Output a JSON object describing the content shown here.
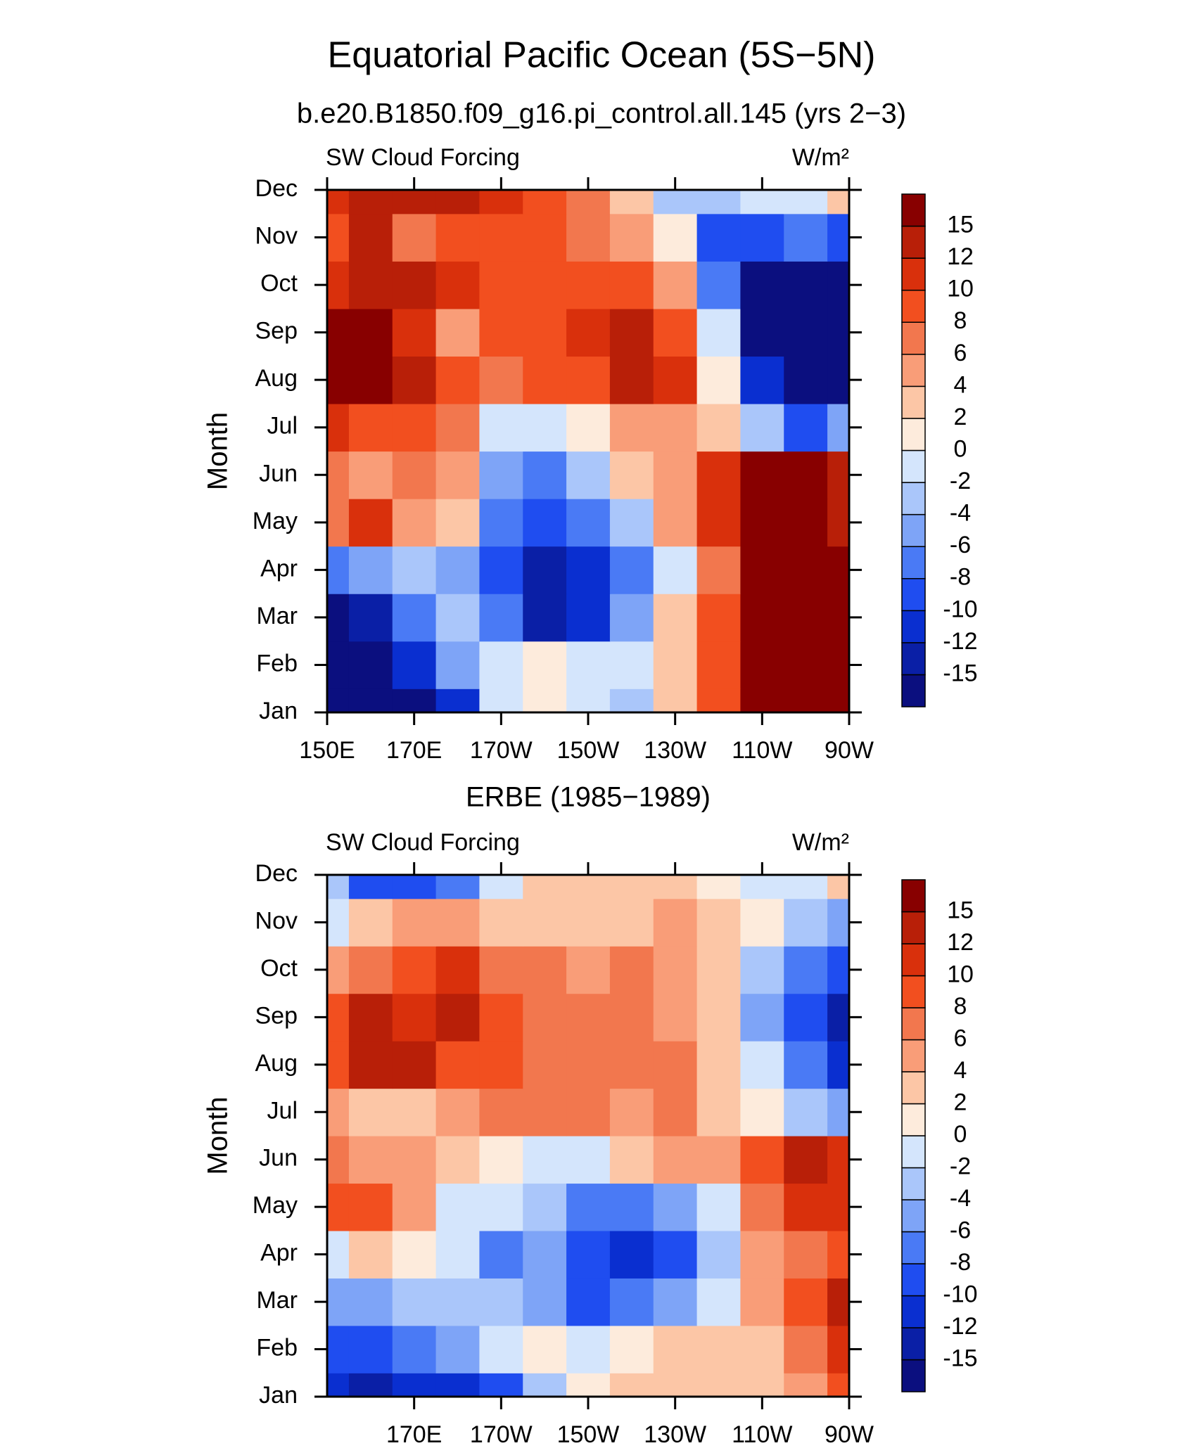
{
  "header": {
    "title": "Equatorial Pacific Ocean (5S−5N)",
    "subtitle": "b.e20.B1850.f09_g16.pi_control.all.145 (yrs 2−3)"
  },
  "colorbar": {
    "levels": [
      -15,
      -12,
      -10,
      -8,
      -6,
      -4,
      -2,
      0,
      2,
      4,
      6,
      8,
      10,
      12,
      15
    ],
    "colors": [
      "#0b0f7f",
      "#0a1fa6",
      "#0a2fd0",
      "#1f4df0",
      "#4a7af5",
      "#7ea4f7",
      "#aac6fa",
      "#d4e5fc",
      "#fdebdc",
      "#fcc6a6",
      "#f99d78",
      "#f2774e",
      "#f24f1f",
      "#d9300c",
      "#b81f08",
      "#880000"
    ]
  },
  "chart_data": [
    {
      "type": "contour",
      "left_label": "SW Cloud Forcing",
      "right_label": "W/m²",
      "ylabel": "Month",
      "categories": [
        "Jan",
        "Feb",
        "Mar",
        "Apr",
        "May",
        "Jun",
        "Jul",
        "Aug",
        "Sep",
        "Oct",
        "Nov",
        "Dec"
      ],
      "x": [
        150,
        160,
        170,
        180,
        190,
        200,
        210,
        220,
        230,
        240,
        250,
        260,
        270
      ],
      "xlim": [
        150,
        270
      ],
      "xticks": [
        {
          "value": 150,
          "label": "150E"
        },
        {
          "value": 170,
          "label": "170E"
        },
        {
          "value": 190,
          "label": "170W"
        },
        {
          "value": 210,
          "label": "150W"
        },
        {
          "value": 230,
          "label": "130W"
        },
        {
          "value": 250,
          "label": "110W"
        },
        {
          "value": 270,
          "label": "90W"
        }
      ],
      "z": [
        [
          -16,
          -16,
          -16,
          -12,
          -2,
          0,
          -2,
          -4,
          2,
          8,
          16,
          16,
          16
        ],
        [
          -16,
          -16,
          -12,
          -6,
          -2,
          0,
          -2,
          -2,
          2,
          8,
          16,
          16,
          16
        ],
        [
          -16,
          -14,
          -8,
          -4,
          -8,
          -14,
          -12,
          -6,
          2,
          8,
          16,
          18,
          16
        ],
        [
          -8,
          -6,
          -4,
          -6,
          -10,
          -14,
          -12,
          -8,
          -2,
          6,
          16,
          18,
          16
        ],
        [
          6,
          10,
          4,
          2,
          -8,
          -10,
          -8,
          -4,
          4,
          10,
          16,
          16,
          14
        ],
        [
          6,
          4,
          6,
          4,
          -6,
          -8,
          -4,
          2,
          4,
          10,
          16,
          16,
          12
        ],
        [
          10,
          8,
          8,
          6,
          -2,
          -2,
          0,
          4,
          4,
          2,
          -4,
          -10,
          -6
        ],
        [
          18,
          18,
          12,
          8,
          6,
          8,
          8,
          12,
          10,
          0,
          -12,
          -16,
          -16
        ],
        [
          18,
          18,
          10,
          4,
          8,
          8,
          10,
          14,
          8,
          -2,
          -16,
          -16,
          -16
        ],
        [
          10,
          12,
          14,
          10,
          8,
          8,
          8,
          8,
          4,
          -8,
          -16,
          -16,
          -16
        ],
        [
          8,
          14,
          6,
          8,
          8,
          8,
          6,
          4,
          0,
          -10,
          -10,
          -8,
          -10
        ],
        [
          10,
          12,
          12,
          12,
          10,
          8,
          6,
          2,
          -4,
          -4,
          -2,
          -2,
          2
        ]
      ]
    },
    {
      "type": "contour",
      "title": "ERBE (1985−1989)",
      "left_label": "SW Cloud Forcing",
      "right_label": "W/m²",
      "ylabel": "Month",
      "categories": [
        "Jan",
        "Feb",
        "Mar",
        "Apr",
        "May",
        "Jun",
        "Jul",
        "Aug",
        "Sep",
        "Oct",
        "Nov",
        "Dec"
      ],
      "x": [
        150,
        160,
        170,
        180,
        190,
        200,
        210,
        220,
        230,
        240,
        250,
        260,
        270
      ],
      "xlim": [
        150,
        270
      ],
      "xticks": [
        {
          "value": 170,
          "label": "170E"
        },
        {
          "value": 190,
          "label": "170W"
        },
        {
          "value": 210,
          "label": "150W"
        },
        {
          "value": 230,
          "label": "130W"
        },
        {
          "value": 250,
          "label": "110W"
        },
        {
          "value": 270,
          "label": "90W"
        }
      ],
      "z": [
        [
          -12,
          -14,
          -12,
          -12,
          -10,
          -4,
          0,
          2,
          2,
          2,
          2,
          4,
          8
        ],
        [
          -10,
          -10,
          -8,
          -6,
          -2,
          0,
          -2,
          0,
          2,
          2,
          2,
          6,
          10
        ],
        [
          -6,
          -6,
          -4,
          -4,
          -4,
          -6,
          -10,
          -8,
          -6,
          -2,
          4,
          8,
          12
        ],
        [
          -2,
          2,
          0,
          -2,
          -8,
          -6,
          -10,
          -12,
          -10,
          -4,
          4,
          6,
          8
        ],
        [
          8,
          8,
          4,
          -2,
          -2,
          -4,
          -8,
          -8,
          -6,
          -2,
          6,
          10,
          10
        ],
        [
          6,
          4,
          4,
          2,
          0,
          -2,
          -2,
          2,
          4,
          4,
          8,
          12,
          10
        ],
        [
          4,
          2,
          2,
          4,
          6,
          6,
          6,
          4,
          6,
          2,
          0,
          -4,
          -6
        ],
        [
          8,
          12,
          12,
          8,
          8,
          6,
          6,
          6,
          6,
          2,
          -2,
          -8,
          -12
        ],
        [
          8,
          12,
          10,
          12,
          8,
          6,
          6,
          6,
          4,
          2,
          -6,
          -10,
          -14
        ],
        [
          4,
          6,
          8,
          10,
          6,
          6,
          4,
          6,
          4,
          2,
          -4,
          -8,
          -10
        ],
        [
          -2,
          2,
          4,
          4,
          2,
          2,
          2,
          2,
          4,
          2,
          0,
          -4,
          -6
        ],
        [
          -4,
          -10,
          -10,
          -8,
          -2,
          2,
          2,
          2,
          2,
          0,
          -2,
          -2,
          2
        ]
      ]
    }
  ]
}
